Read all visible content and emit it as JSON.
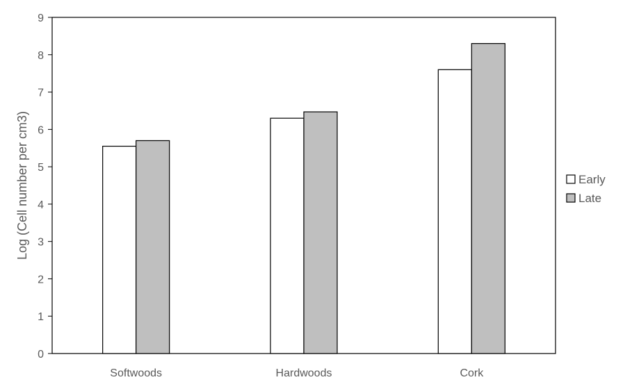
{
  "chart_data": {
    "type": "bar",
    "title": "",
    "xlabel": "",
    "ylabel": "Log (Cell number per cm3)",
    "categories": [
      "Softwoods",
      "Hardwoods",
      "Cork"
    ],
    "series": [
      {
        "name": "Early",
        "values": [
          5.55,
          6.3,
          7.6
        ],
        "color": "#ffffff"
      },
      {
        "name": "Late",
        "values": [
          5.7,
          6.47,
          8.3
        ],
        "color": "#bfbfbf"
      }
    ],
    "ylim": [
      0,
      9
    ],
    "yticks": [
      "0",
      "1",
      "2",
      "3",
      "4",
      "5",
      "6",
      "7",
      "8",
      "9"
    ],
    "grid": false,
    "legend": "right",
    "bar_outline_color": "#000000",
    "axis_text_color": "#595959"
  }
}
